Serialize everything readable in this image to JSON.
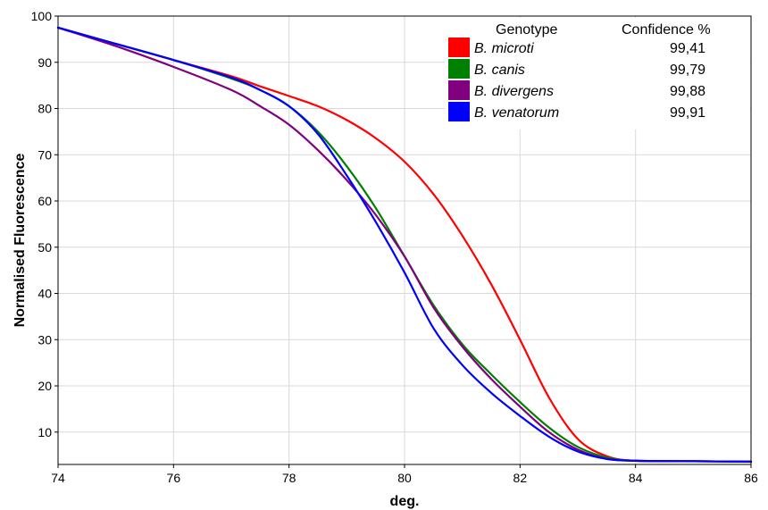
{
  "chart_data": {
    "type": "line",
    "xlabel": "deg.",
    "ylabel": "Normalised Fluorescence",
    "xlim": [
      74,
      86
    ],
    "ylim": [
      3,
      100
    ],
    "x_ticks": [
      74,
      76,
      78,
      80,
      82,
      84,
      86
    ],
    "y_ticks": [
      10,
      20,
      30,
      40,
      50,
      60,
      70,
      80,
      90,
      100
    ],
    "grid": true,
    "legend": {
      "placement": "top-right",
      "header_genotype": "Genotype",
      "header_confidence": "Confidence %"
    },
    "series": [
      {
        "name": "B. microti",
        "confidence": "99,41",
        "color": "#ff0000",
        "x": [
          74,
          75,
          76,
          77,
          77.5,
          78,
          78.5,
          79,
          79.5,
          80,
          80.5,
          81,
          81.5,
          82,
          82.5,
          83,
          83.5,
          84,
          85,
          86
        ],
        "y": [
          97.5,
          94,
          90.5,
          87,
          84.8,
          82.7,
          80.5,
          77.5,
          73.6,
          68.5,
          61.5,
          52.5,
          42,
          30,
          17.5,
          8.5,
          4.8,
          3.8,
          3.7,
          3.6
        ]
      },
      {
        "name": "B. canis",
        "confidence": "99,79",
        "color": "#008000",
        "x": [
          74,
          75,
          76,
          77,
          77.5,
          78,
          78.5,
          79,
          79.5,
          80,
          80.5,
          81,
          81.5,
          82,
          82.5,
          83,
          83.5,
          84,
          85,
          86
        ],
        "y": [
          97.5,
          94,
          90.5,
          86.5,
          84,
          80.5,
          75,
          67.5,
          58.5,
          48,
          37.5,
          29,
          22.5,
          16.5,
          11,
          6.8,
          4.5,
          3.8,
          3.7,
          3.6
        ]
      },
      {
        "name": "B. divergens",
        "confidence": "99,88",
        "color": "#800080",
        "x": [
          74,
          75,
          76,
          77,
          77.5,
          78,
          78.5,
          79,
          79.5,
          80,
          80.5,
          81,
          81.5,
          82,
          82.5,
          83,
          83.5,
          84,
          85,
          86
        ],
        "y": [
          97.5,
          93.5,
          89,
          84,
          80.5,
          76.5,
          71,
          64.5,
          57,
          48,
          37,
          28.5,
          21.5,
          15.5,
          10,
          6.2,
          4.2,
          3.8,
          3.7,
          3.6
        ]
      },
      {
        "name": "B. venatorum",
        "confidence": "99,91",
        "color": "#0000ff",
        "x": [
          74,
          75,
          76,
          77,
          77.5,
          78,
          78.5,
          79,
          79.5,
          80,
          80.5,
          81,
          81.5,
          82,
          82.5,
          83,
          83.5,
          84,
          85,
          86
        ],
        "y": [
          97.5,
          94,
          90.5,
          86.7,
          84,
          80.5,
          74.5,
          65.5,
          55.5,
          44.5,
          32.5,
          24.5,
          18.5,
          13.5,
          9,
          5.8,
          4.2,
          3.8,
          3.7,
          3.6
        ]
      }
    ]
  }
}
